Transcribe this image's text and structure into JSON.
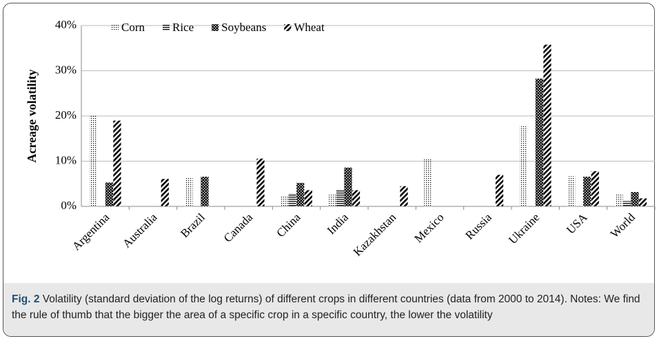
{
  "chart_data": {
    "type": "bar",
    "y_label": "Acreage volatility",
    "categories": [
      "Argentina",
      "Australia",
      "Brazil",
      "Canada",
      "China",
      "India",
      "Kazakhstan",
      "Mexico",
      "Russia",
      "Ukraine",
      "USA",
      "World"
    ],
    "series": [
      {
        "name": "Corn",
        "color": "#000000",
        "pattern": "dots",
        "values": [
          20.3,
          null,
          6.3,
          null,
          2.4,
          2.6,
          null,
          10.6,
          null,
          18.0,
          6.7,
          2.9
        ]
      },
      {
        "name": "Rice",
        "color": "#000000",
        "pattern": "hlines",
        "values": [
          null,
          null,
          null,
          null,
          2.9,
          3.6,
          null,
          null,
          null,
          null,
          null,
          1.2
        ]
      },
      {
        "name": "Soybeans",
        "color": "#000000",
        "pattern": "check",
        "values": [
          5.3,
          null,
          6.6,
          null,
          5.2,
          8.6,
          null,
          null,
          null,
          28.3,
          6.6,
          3.2
        ]
      },
      {
        "name": "Wheat",
        "color": "#000000",
        "pattern": "diag",
        "values": [
          19.0,
          6.1,
          null,
          10.6,
          3.6,
          3.6,
          4.5,
          null,
          7.0,
          35.8,
          7.8,
          1.8
        ]
      }
    ],
    "ylim": [
      0,
      40
    ],
    "yticks": [
      {
        "value": 0,
        "label": "0%"
      },
      {
        "value": 10,
        "label": "10%"
      },
      {
        "value": 20,
        "label": "20%"
      },
      {
        "value": 30,
        "label": "30%"
      },
      {
        "value": 40,
        "label": "40%"
      }
    ],
    "grid": true,
    "legend": "top"
  },
  "caption": {
    "label": "Fig. 2",
    "text": "Volatility (standard deviation of the log returns) of different crops in different countries (data from 2000 to 2014). Notes: We find the rule of thumb that the bigger the area of a specific crop in a specific country, the lower the volatility"
  }
}
